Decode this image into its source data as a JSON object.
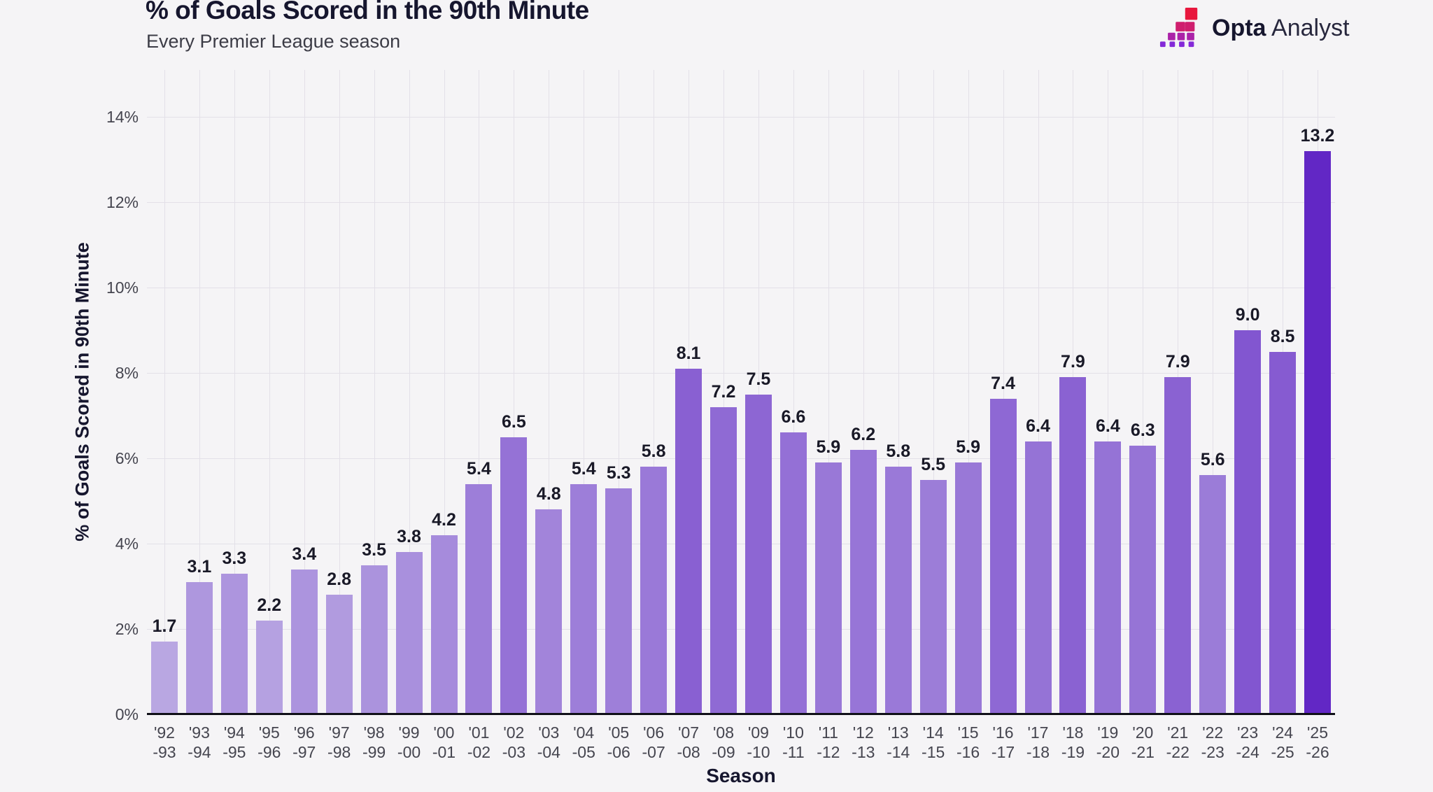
{
  "header": {
    "title": "% of Goals Scored in the 90th Minute",
    "subtitle": "Every Premier League season",
    "logo": {
      "brand_bold": "Opta",
      "brand_regular": "Analyst"
    }
  },
  "chart_data": {
    "type": "bar",
    "title": "% of Goals Scored in the 90th Minute",
    "subtitle": "Every Premier League season",
    "xlabel": "Season",
    "ylabel": "% of Goals Scored in 90th Minute",
    "categories": [
      "'92-93",
      "'93-94",
      "'94-95",
      "'95-96",
      "'96-97",
      "'97-98",
      "'98-99",
      "'99-00",
      "'00-01",
      "'01-02",
      "'02-03",
      "'03-04",
      "'04-05",
      "'05-06",
      "'06-07",
      "'07-08",
      "'08-09",
      "'09-10",
      "'10-11",
      "'11-12",
      "'12-13",
      "'13-14",
      "'14-15",
      "'15-16",
      "'16-17",
      "'17-18",
      "'18-19",
      "'19-20",
      "'20-21",
      "'21-22",
      "'22-23",
      "'23-24",
      "'24-25",
      "'25-26"
    ],
    "values": [
      1.7,
      3.1,
      3.3,
      2.2,
      3.4,
      2.8,
      3.5,
      3.8,
      4.2,
      5.4,
      6.5,
      4.8,
      5.4,
      5.3,
      5.8,
      8.1,
      7.2,
      7.5,
      6.6,
      5.9,
      6.2,
      5.8,
      5.5,
      5.9,
      7.4,
      6.4,
      7.9,
      6.4,
      6.3,
      7.9,
      5.6,
      9.0,
      8.5,
      13.2
    ],
    "bar_labels": [
      "1.7",
      "3.1",
      "3.3",
      "2.2",
      "3.4",
      "2.8",
      "3.5",
      "3.8",
      "4.2",
      "5.4",
      "6.5",
      "4.8",
      "5.4",
      "5.3",
      "5.8",
      "8.1",
      "7.2",
      "7.5",
      "6.6",
      "5.9",
      "6.2",
      "5.8",
      "5.5",
      "5.9",
      "7.4",
      "6.4",
      "7.9",
      "6.4",
      "6.3",
      "7.9",
      "5.6",
      "9.0",
      "8.5",
      "13.2"
    ],
    "ylim": [
      0,
      14
    ],
    "y_ticks": [
      0,
      2,
      4,
      6,
      8,
      10,
      12,
      14
    ],
    "y_tick_suffix": "%",
    "grid": true,
    "legend": "none",
    "color_scale": {
      "min_value": 1.7,
      "max_value": 13.2
    }
  },
  "colors": {
    "background": "#f5f4f6",
    "bar_low": "#b9a7e2",
    "bar_high": "#6227c5",
    "grid": "#e3e0e8",
    "axis": "#101018",
    "title": "#16162e",
    "subtitle": "#3c3c46",
    "tick": "#45454f",
    "value_label": "#191927",
    "logo_row_colors": [
      "#e8173d",
      "#cf1e6e",
      "#ab22a8",
      "#8429d8"
    ]
  }
}
